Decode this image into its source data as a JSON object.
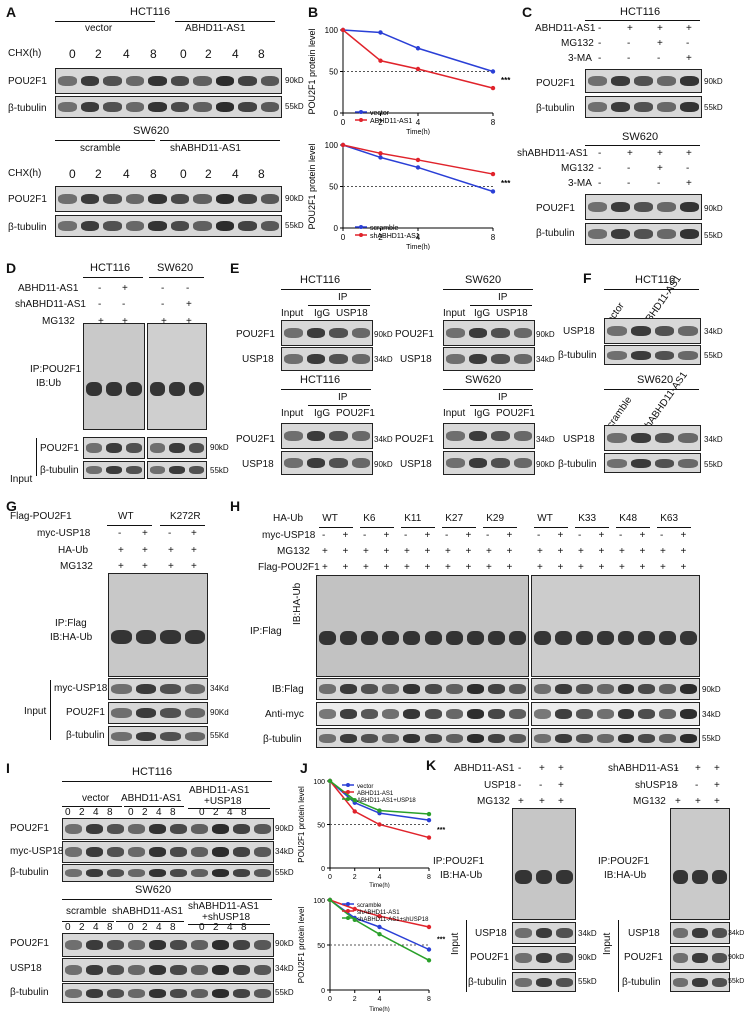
{
  "panels": {
    "A": {
      "letter": "A",
      "cell1": "HCT116",
      "cond1": [
        "vector",
        "ABHD11-AS1"
      ],
      "chx": "CHX(h)",
      "times": [
        "0",
        "2",
        "4",
        "8",
        "0",
        "2",
        "4",
        "8"
      ],
      "cell2": "SW620",
      "cond2": [
        "scramble",
        "shABHD11-AS1"
      ],
      "rows": [
        "POU2F1",
        "β-tubulin"
      ],
      "mw": [
        "90kD",
        "55kD"
      ]
    },
    "B": {
      "letter": "B",
      "ylabel": "POU2F1 protein level",
      "xlabel": "Time(h)",
      "sig": "***"
    },
    "C": {
      "letter": "C",
      "cell1": "HCT116",
      "rows1": [
        "ABHD11-AS1",
        "MG132",
        "3-MA"
      ],
      "cell2": "SW620",
      "rows2": [
        "shABHD11-AS1",
        "MG132",
        "3-MA"
      ],
      "signs1": [
        [
          "-",
          "+",
          "+",
          "+"
        ],
        [
          "-",
          "-",
          "+",
          "-"
        ],
        [
          "-",
          "-",
          "-",
          "+"
        ]
      ],
      "signs2": [
        [
          "-",
          "+",
          "+",
          "+"
        ],
        [
          "-",
          "-",
          "+",
          "-"
        ],
        [
          "-",
          "-",
          "-",
          "+"
        ]
      ],
      "blots": [
        "POU2F1",
        "β-tubulin"
      ],
      "mw": [
        "90kD",
        "55kD"
      ]
    },
    "D": {
      "letter": "D",
      "cells": [
        "HCT116",
        "SW620"
      ],
      "rows": [
        "ABHD11-AS1",
        "shABHD11-AS1",
        "MG132"
      ],
      "signs": [
        [
          "-",
          "+",
          "-",
          "-"
        ],
        [
          "-",
          "-",
          "-",
          "+"
        ],
        [
          "+",
          "+",
          "+",
          "+"
        ]
      ],
      "ip": "IP:POU2F1",
      "ib": "IB:Ub",
      "input": "Input",
      "inputRows": [
        "POU2F1",
        "β-tubulin"
      ],
      "mw": [
        "90kD",
        "55kD"
      ]
    },
    "E": {
      "letter": "E",
      "cells": [
        "HCT116",
        "SW620",
        "HCT116",
        "SW620"
      ],
      "ip": "IP",
      "cols1": [
        "Input",
        "IgG",
        "USP18"
      ],
      "cols2": [
        "Input",
        "IgG",
        "POU2F1"
      ],
      "rows1": [
        "POU2F1",
        "USP18"
      ],
      "mw1": [
        "90kD",
        "34kD"
      ],
      "rows2": [
        "POU2F1",
        "USP18"
      ],
      "mw2": [
        "34kD",
        "90kD"
      ]
    },
    "F": {
      "letter": "F",
      "cell1": "HCT116",
      "cols1": [
        "vector",
        "ABHD11-AS1"
      ],
      "cell2": "SW620",
      "cols2": [
        "scramble",
        "shABHD11-AS1"
      ],
      "rows": [
        "USP18",
        "β-tubulin"
      ],
      "mw": [
        "34kD",
        "55kD"
      ]
    },
    "G": {
      "letter": "G",
      "rows": [
        "Flag-POU2F1",
        "myc-USP18",
        "HA-Ub",
        "MG132"
      ],
      "groups": [
        "WT",
        "K272R"
      ],
      "signs": [
        [
          "-",
          "+",
          "-",
          "+"
        ],
        [
          "+",
          "+",
          "+",
          "+"
        ],
        [
          "+",
          "+",
          "+",
          "+"
        ]
      ],
      "ip": "IP:Flag",
      "ib": "IB:HA-Ub",
      "input": "Input",
      "inputRows": [
        "myc-USP18",
        "POU2F1",
        "β-tubulin"
      ],
      "mw": [
        "34Kd",
        "90Kd",
        "55Kd"
      ]
    },
    "H": {
      "letter": "H",
      "rows": [
        "HA-Ub",
        "myc-USP18",
        "MG132",
        "Flag-POU2F1"
      ],
      "groups1": [
        "WT",
        "K6",
        "K11",
        "K27",
        "K29"
      ],
      "groups2": [
        "WT",
        "K33",
        "K48",
        "K63"
      ],
      "ip": "IP:Flag",
      "ib": "IB:HA-Ub",
      "blotRows": [
        "IB:Flag",
        "Anti-myc",
        "β-tubulin"
      ],
      "mw": [
        "90kD",
        "34kD",
        "55kD"
      ]
    },
    "I": {
      "letter": "I",
      "cell1": "HCT116",
      "cond1": [
        "vector",
        "ABHD11-AS1",
        "ABHD11-AS1",
        "+USP18"
      ],
      "cell2": "SW620",
      "cond2": [
        "scramble",
        "shABHD11-AS1",
        "shABHD11-AS1",
        "+shUSP18"
      ],
      "times": [
        "0",
        "2",
        "4",
        "8"
      ],
      "rows1": [
        "POU2F1",
        "myc-USP18",
        "β-tubulin"
      ],
      "mw1": [
        "90kD",
        "34kD",
        "55kD"
      ],
      "rows2": [
        "POU2F1",
        "USP18",
        "β-tubulin"
      ],
      "mw2": [
        "90kD",
        "34kD",
        "55kD"
      ]
    },
    "J": {
      "letter": "J",
      "ylabel": "POU2F1 protein level",
      "xlabel": "Time(h)",
      "sig": "***"
    },
    "K": {
      "letter": "K",
      "rows1": [
        "ABHD11-AS1",
        "USP18",
        "MG132"
      ],
      "rows2": [
        "shABHD11-AS1",
        "shUSP18",
        "MG132"
      ],
      "signs": [
        [
          "-",
          "+",
          "+"
        ],
        [
          "-",
          "-",
          "+"
        ],
        [
          "+",
          "+",
          "+"
        ]
      ],
      "ip": "IP:POU2F1",
      "ib": "IB:HA-Ub",
      "input": "Input",
      "inputRows": [
        "USP18",
        "POU2F1",
        "β-tubulin"
      ],
      "mw": [
        "34kD",
        "90kD",
        "55kD"
      ]
    }
  },
  "chart_data": [
    {
      "type": "line",
      "ylabel": "POU2F1 protein level",
      "xlabel": "Time(h)",
      "x": [
        0,
        2,
        4,
        8
      ],
      "ylim": [
        0,
        100
      ],
      "xlim": [
        0,
        8
      ],
      "reference_y": 50,
      "annotation": "***",
      "series": [
        {
          "name": "vector",
          "color": "#2a3fd6",
          "values": [
            100,
            97,
            78,
            50
          ]
        },
        {
          "name": "ABHD11-AS1",
          "color": "#e0232b",
          "values": [
            100,
            63,
            53,
            30
          ]
        }
      ]
    },
    {
      "type": "line",
      "ylabel": "POU2F1 protein level",
      "xlabel": "Time(h)",
      "x": [
        0,
        2,
        4,
        8
      ],
      "ylim": [
        0,
        100
      ],
      "xlim": [
        0,
        8
      ],
      "reference_y": 50,
      "annotation": "***",
      "series": [
        {
          "name": "scramble",
          "color": "#2a3fd6",
          "values": [
            100,
            85,
            73,
            44
          ]
        },
        {
          "name": "shABHD11-AS1",
          "color": "#e0232b",
          "values": [
            100,
            90,
            82,
            65
          ]
        }
      ]
    },
    {
      "type": "line",
      "ylabel": "POU2F1 protein level",
      "xlabel": "Time(h)",
      "x": [
        0,
        2,
        4,
        8
      ],
      "ylim": [
        0,
        100
      ],
      "xlim": [
        0,
        8
      ],
      "reference_y": 50,
      "annotation": "***",
      "series": [
        {
          "name": "vector",
          "color": "#2a3fd6",
          "values": [
            100,
            75,
            63,
            55
          ]
        },
        {
          "name": "ABHD11-AS1",
          "color": "#e0232b",
          "values": [
            100,
            65,
            50,
            35
          ]
        },
        {
          "name": "ABHD11-AS1+USP18",
          "color": "#2aa02a",
          "values": [
            100,
            78,
            66,
            62
          ]
        }
      ]
    },
    {
      "type": "line",
      "ylabel": "POU2F1 protein level",
      "xlabel": "Time(h)",
      "x": [
        0,
        2,
        4,
        8
      ],
      "ylim": [
        0,
        100
      ],
      "xlim": [
        0,
        8
      ],
      "reference_y": 50,
      "annotation": "***",
      "series": [
        {
          "name": "scramble",
          "color": "#2a3fd6",
          "values": [
            100,
            80,
            70,
            45
          ]
        },
        {
          "name": "shABHD11-AS1",
          "color": "#e0232b",
          "values": [
            100,
            90,
            82,
            70
          ]
        },
        {
          "name": "shABHD11-AS1+shUSP18",
          "color": "#2aa02a",
          "values": [
            100,
            78,
            62,
            33
          ]
        }
      ]
    }
  ]
}
